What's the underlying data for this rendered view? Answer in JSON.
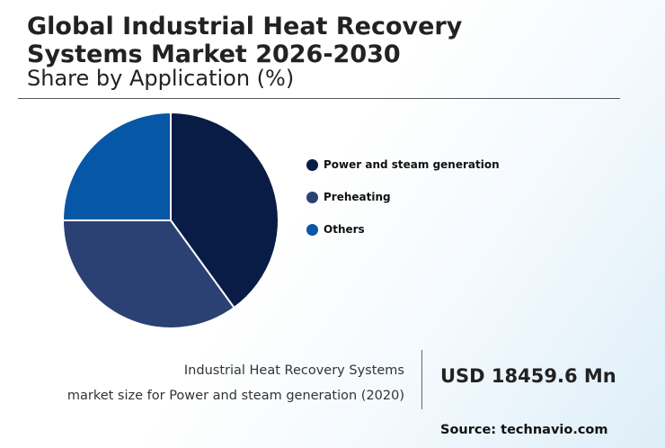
{
  "header": {
    "title_line1": "Global Industrial Heat Recovery",
    "title_line2": "Systems Market 2026-2030",
    "subtitle": "Share by Application (%)"
  },
  "chart_data": {
    "type": "pie",
    "title": "Share by Application (%)",
    "categories": [
      "Power and steam generation",
      "Preheating",
      "Others"
    ],
    "values": [
      40,
      35,
      25
    ],
    "colors": [
      "#081c45",
      "#2b4173",
      "#0757a7"
    ],
    "legend_position": "right"
  },
  "caption": {
    "line1": "Industrial Heat Recovery Systems",
    "line2": "market size for Power and steam generation (2020)"
  },
  "market_value": "USD 18459.6 Mn",
  "source": "Source: technavio.com"
}
